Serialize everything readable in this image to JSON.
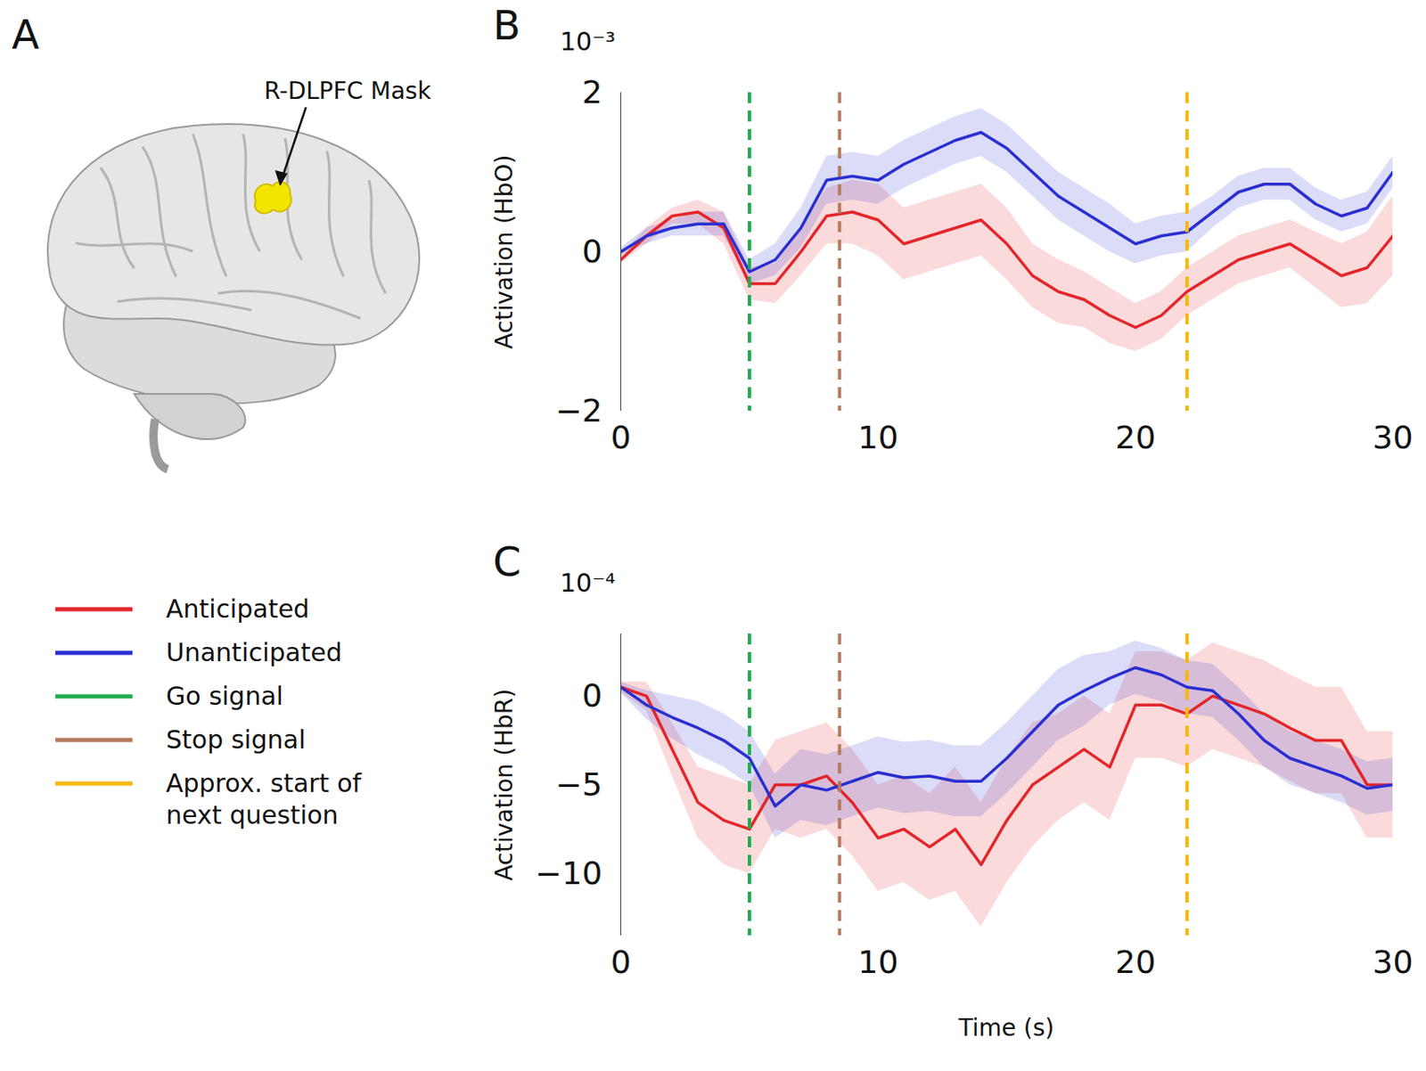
{
  "chart_data": [
    {
      "type": "line",
      "title": "B",
      "annotations": [
        "10⁻³"
      ],
      "ylabel": "Activation (HbO)",
      "x": [
        0,
        1,
        2,
        3,
        4,
        5,
        6,
        7,
        8,
        9,
        10,
        11,
        12,
        13,
        14,
        15,
        16,
        17,
        18,
        19,
        20,
        21,
        22,
        23,
        24,
        25,
        26,
        27,
        28,
        29,
        30
      ],
      "xlim": [
        0,
        30
      ],
      "xticks": [
        0,
        10,
        20,
        30
      ],
      "ylim": [
        -2,
        2
      ],
      "yticks": [
        -2,
        0,
        2
      ],
      "series": [
        {
          "name": "Anticipated",
          "color": "#e3262b",
          "values": [
            -0.1,
            0.2,
            0.45,
            0.5,
            0.3,
            -0.4,
            -0.4,
            0.0,
            0.45,
            0.5,
            0.4,
            0.1,
            0.2,
            0.3,
            0.4,
            0.1,
            -0.3,
            -0.5,
            -0.6,
            -0.8,
            -0.95,
            -0.8,
            -0.5,
            -0.3,
            -0.1,
            0.0,
            0.1,
            -0.1,
            -0.3,
            -0.2,
            0.2
          ],
          "error": [
            0.05,
            0.1,
            0.1,
            0.15,
            0.2,
            0.2,
            0.25,
            0.3,
            0.35,
            0.4,
            0.45,
            0.45,
            0.45,
            0.45,
            0.45,
            0.45,
            0.4,
            0.4,
            0.35,
            0.35,
            0.3,
            0.3,
            0.3,
            0.3,
            0.3,
            0.3,
            0.3,
            0.35,
            0.4,
            0.45,
            0.5
          ]
        },
        {
          "name": "Unanticipated",
          "color": "#2a2fd0",
          "values": [
            0,
            0.2,
            0.3,
            0.35,
            0.35,
            -0.25,
            -0.1,
            0.3,
            0.9,
            0.95,
            0.9,
            1.1,
            1.25,
            1.4,
            1.5,
            1.3,
            1.0,
            0.7,
            0.5,
            0.3,
            0.1,
            0.2,
            0.25,
            0.5,
            0.75,
            0.85,
            0.85,
            0.6,
            0.45,
            0.55,
            1.0
          ],
          "error": [
            0.05,
            0.1,
            0.1,
            0.15,
            0.15,
            0.15,
            0.2,
            0.25,
            0.3,
            0.3,
            0.3,
            0.3,
            0.3,
            0.3,
            0.3,
            0.3,
            0.3,
            0.3,
            0.3,
            0.3,
            0.25,
            0.25,
            0.25,
            0.2,
            0.2,
            0.2,
            0.2,
            0.2,
            0.2,
            0.2,
            0.2
          ]
        }
      ],
      "events": [
        {
          "name": "Go signal",
          "x": 5,
          "color": "#1fae4e"
        },
        {
          "name": "Stop signal",
          "x": 8.5,
          "color": "#b47a5c"
        },
        {
          "name": "Approx. start of next question",
          "x": 22,
          "color": "#f5b80c"
        }
      ]
    },
    {
      "type": "line",
      "title": "C",
      "annotations": [
        "10⁻⁴"
      ],
      "ylabel": "Activation (HbR)",
      "xlabel": "Time (s)",
      "x": [
        0,
        1,
        2,
        3,
        4,
        5,
        6,
        7,
        8,
        9,
        10,
        11,
        12,
        13,
        14,
        15,
        16,
        17,
        18,
        19,
        20,
        21,
        22,
        23,
        24,
        25,
        26,
        27,
        28,
        29,
        30
      ],
      "xlim": [
        0,
        30
      ],
      "xticks": [
        0,
        10,
        20,
        30
      ],
      "ylim": [
        -13.5,
        3.5
      ],
      "yticks": [
        -10,
        -5,
        0
      ],
      "series": [
        {
          "name": "Anticipated",
          "color": "#e3262b",
          "values": [
            0.5,
            0,
            -3,
            -6,
            -7,
            -7.5,
            -5,
            -5,
            -4.5,
            -6,
            -8,
            -7.5,
            -8.5,
            -7.5,
            -9.5,
            -7,
            -5,
            -4,
            -3,
            -4,
            -0.5,
            -0.5,
            -1,
            0,
            -0.5,
            -1,
            -1.8,
            -2.5,
            -2.5,
            -5,
            -5
          ],
          "error": [
            0.3,
            0.8,
            1.5,
            2,
            2.5,
            2.5,
            2.5,
            3,
            3,
            3,
            3,
            3,
            3,
            3.5,
            3.5,
            3.5,
            3.5,
            3,
            3,
            3,
            3,
            3,
            3,
            3,
            3,
            3,
            3,
            3,
            3,
            3,
            3
          ]
        },
        {
          "name": "Unanticipated",
          "color": "#2a2fd0",
          "values": [
            0.5,
            -0.5,
            -1.2,
            -1.8,
            -2.5,
            -3.5,
            -6.2,
            -5,
            -5.3,
            -4.8,
            -4.3,
            -4.6,
            -4.5,
            -4.8,
            -4.8,
            -3.5,
            -2,
            -0.5,
            0.3,
            1,
            1.6,
            1.2,
            0.5,
            0.3,
            -1,
            -2.5,
            -3.5,
            -4,
            -4.5,
            -5.2,
            -5
          ],
          "error": [
            0.3,
            0.8,
            1.2,
            1.5,
            1.5,
            1.5,
            1.8,
            2,
            2,
            2,
            2,
            2,
            2,
            2,
            2,
            2,
            2,
            2,
            2,
            1.5,
            1.5,
            1.5,
            1.5,
            1.5,
            1.5,
            1.5,
            1.5,
            1.5,
            1.5,
            1.5,
            1.5
          ]
        }
      ],
      "events": [
        {
          "name": "Go signal",
          "x": 5,
          "color": "#1fae4e"
        },
        {
          "name": "Stop signal",
          "x": 8.5,
          "color": "#b47a5c"
        },
        {
          "name": "Approx. start of next question",
          "x": 22,
          "color": "#f5b80c"
        }
      ]
    }
  ],
  "figure": {
    "panel_A": {
      "label": "A",
      "annotation": "R-DLPFC Mask"
    }
  }
}
